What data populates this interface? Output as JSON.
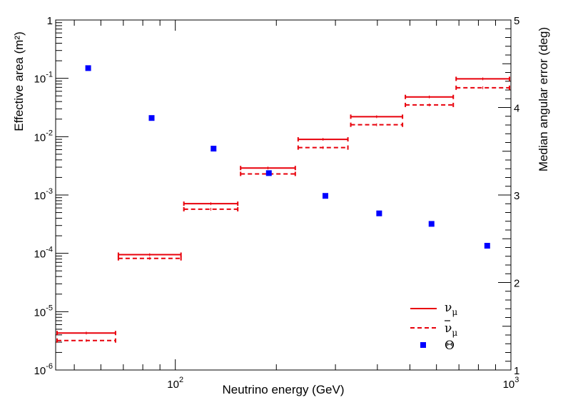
{
  "chart_data": {
    "type": "step-bar-with-scatter",
    "xlabel": "Neutrino energy (GeV)",
    "ylabel_left": "Effective area (m²)",
    "ylabel_right": "Median angular error (deg)",
    "x_scale": "log",
    "y_left_scale": "log",
    "xlim": [
      44,
      1000
    ],
    "ylim_left": [
      1e-06,
      1
    ],
    "ylim_right": [
      1,
      5
    ],
    "x_ticks": [
      {
        "value": 100,
        "base": "10",
        "exp": "2"
      },
      {
        "value": 1000,
        "base": "10",
        "exp": "3"
      }
    ],
    "y_left_ticks": [
      {
        "value": 1,
        "base": "1",
        "exp": ""
      },
      {
        "value": 0.1,
        "base": "10",
        "exp": "-1"
      },
      {
        "value": 0.01,
        "base": "10",
        "exp": "-2"
      },
      {
        "value": 0.001,
        "base": "10",
        "exp": "-3"
      },
      {
        "value": 0.0001,
        "base": "10",
        "exp": "-4"
      },
      {
        "value": 1e-05,
        "base": "10",
        "exp": "-5"
      },
      {
        "value": 1e-06,
        "base": "10",
        "exp": "-6"
      }
    ],
    "y_right_ticks": [
      1,
      2,
      3,
      4,
      5
    ],
    "bins": [
      [
        44,
        67
      ],
      [
        67,
        105
      ],
      [
        105,
        155
      ],
      [
        155,
        230
      ],
      [
        230,
        330
      ],
      [
        330,
        480
      ],
      [
        480,
        680
      ],
      [
        680,
        1000
      ]
    ],
    "series": [
      {
        "name": "ν_μ",
        "legend_label": "νμ",
        "style": "solid",
        "color": "#e8000b",
        "axis": "left",
        "values": [
          4.3e-06,
          9.5e-05,
          0.00071,
          0.0029,
          0.009,
          0.022,
          0.048,
          0.098
        ]
      },
      {
        "name": "anti-ν_μ",
        "legend_label": "ν̄μ",
        "style": "dashed",
        "color": "#e8000b",
        "axis": "left",
        "values": [
          3.2e-06,
          8.2e-05,
          0.00057,
          0.0023,
          0.0065,
          0.016,
          0.035,
          0.069
        ]
      },
      {
        "name": "Θ",
        "legend_label": "Θ",
        "style": "markers",
        "color": "#0000ff",
        "axis": "right",
        "x": [
          55,
          85,
          130,
          190,
          280,
          405,
          580,
          850
        ],
        "values": [
          4.45,
          3.88,
          3.53,
          3.25,
          2.99,
          2.79,
          2.67,
          2.42
        ]
      }
    ],
    "legend_position": "bottom-right"
  }
}
